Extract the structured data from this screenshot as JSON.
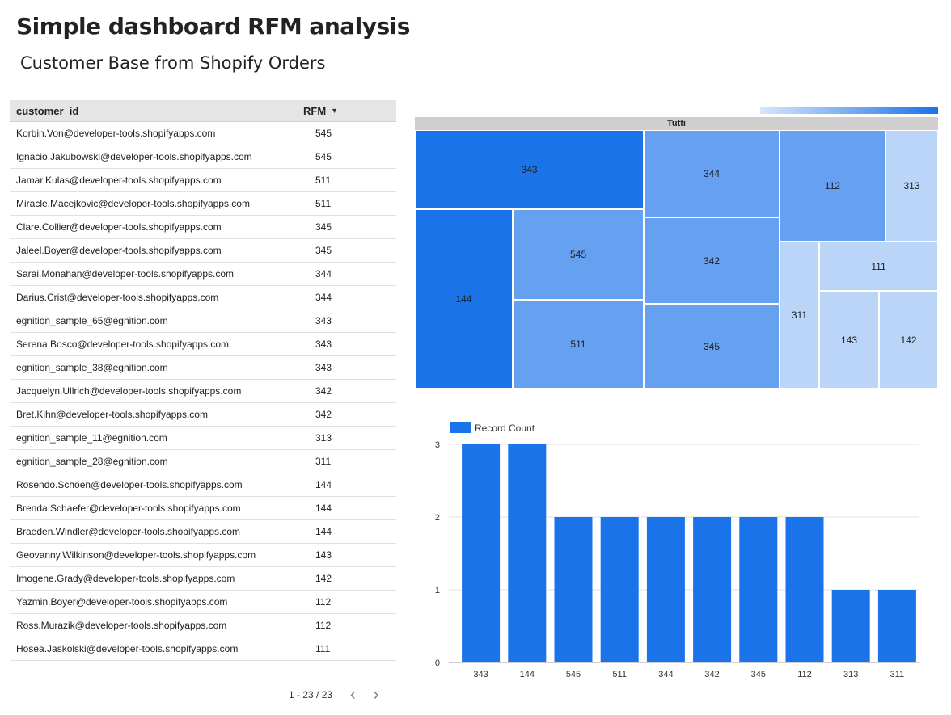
{
  "header": {
    "title": "Simple dashboard RFM analysis",
    "subtitle": "Customer Base from Shopify Orders"
  },
  "table": {
    "columns": [
      "customer_id",
      "RFM"
    ],
    "sort_indicator": "▼",
    "rows": [
      [
        "Korbin.Von@developer-tools.shopifyapps.com",
        "545"
      ],
      [
        "Ignacio.Jakubowski@developer-tools.shopifyapps.com",
        "545"
      ],
      [
        "Jamar.Kulas@developer-tools.shopifyapps.com",
        "511"
      ],
      [
        "Miracle.Macejkovic@developer-tools.shopifyapps.com",
        "511"
      ],
      [
        "Clare.Collier@developer-tools.shopifyapps.com",
        "345"
      ],
      [
        "Jaleel.Boyer@developer-tools.shopifyapps.com",
        "345"
      ],
      [
        "Sarai.Monahan@developer-tools.shopifyapps.com",
        "344"
      ],
      [
        "Darius.Crist@developer-tools.shopifyapps.com",
        "344"
      ],
      [
        "egnition_sample_65@egnition.com",
        "343"
      ],
      [
        "Serena.Bosco@developer-tools.shopifyapps.com",
        "343"
      ],
      [
        "egnition_sample_38@egnition.com",
        "343"
      ],
      [
        "Jacquelyn.Ullrich@developer-tools.shopifyapps.com",
        "342"
      ],
      [
        "Bret.Kihn@developer-tools.shopifyapps.com",
        "342"
      ],
      [
        "egnition_sample_11@egnition.com",
        "313"
      ],
      [
        "egnition_sample_28@egnition.com",
        "311"
      ],
      [
        "Rosendo.Schoen@developer-tools.shopifyapps.com",
        "144"
      ],
      [
        "Brenda.Schaefer@developer-tools.shopifyapps.com",
        "144"
      ],
      [
        "Braeden.Windler@developer-tools.shopifyapps.com",
        "144"
      ],
      [
        "Geovanny.Wilkinson@developer-tools.shopifyapps.com",
        "143"
      ],
      [
        "Imogene.Grady@developer-tools.shopifyapps.com",
        "142"
      ],
      [
        "Yazmin.Boyer@developer-tools.shopifyapps.com",
        "112"
      ],
      [
        "Ross.Murazik@developer-tools.shopifyapps.com",
        "112"
      ],
      [
        "Hosea.Jaskolski@developer-tools.shopifyapps.com",
        "111"
      ]
    ],
    "pagination": "1 - 23 / 23",
    "prev_icon": "chevron-left-icon",
    "next_icon": "chevron-right-icon"
  },
  "treemap": {
    "header": "Tutti",
    "colors": {
      "light": "#d6e6fb",
      "dark": "#1a73e8"
    }
  },
  "chart_data": [
    {
      "type": "treemap",
      "header": "Tutti",
      "cells": [
        {
          "label": "343",
          "value": 3
        },
        {
          "label": "144",
          "value": 3
        },
        {
          "label": "545",
          "value": 2
        },
        {
          "label": "511",
          "value": 2
        },
        {
          "label": "344",
          "value": 2
        },
        {
          "label": "342",
          "value": 2
        },
        {
          "label": "345",
          "value": 2
        },
        {
          "label": "112",
          "value": 2
        },
        {
          "label": "313",
          "value": 1
        },
        {
          "label": "111",
          "value": 1
        },
        {
          "label": "311",
          "value": 1
        },
        {
          "label": "143",
          "value": 1
        },
        {
          "label": "142",
          "value": 1
        }
      ]
    },
    {
      "type": "bar",
      "categories": [
        "343",
        "144",
        "545",
        "511",
        "344",
        "342",
        "345",
        "112",
        "313",
        "311"
      ],
      "series": [
        {
          "name": "Record Count",
          "values": [
            3,
            3,
            2,
            2,
            2,
            2,
            2,
            2,
            1,
            1
          ],
          "color": "#1a73e8"
        }
      ],
      "ylim": [
        0,
        3
      ],
      "yticks": [
        0,
        1,
        2,
        3
      ],
      "grid": true,
      "legend": "top-left"
    }
  ]
}
